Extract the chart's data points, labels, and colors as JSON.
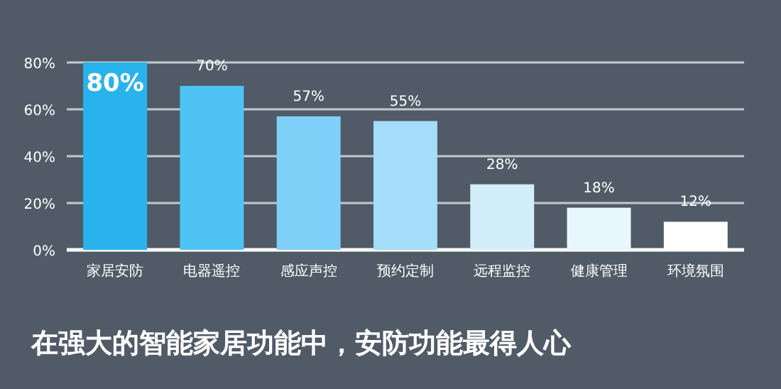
{
  "chart_data": {
    "type": "bar",
    "title": "在强大的智能家居功能中，安防功能最得人心",
    "categories": [
      "家居安防",
      "电器遥控",
      "感应声控",
      "预约定制",
      "远程监控",
      "健康管理",
      "环境氛围"
    ],
    "values": [
      80,
      70,
      57,
      55,
      28,
      18,
      12
    ],
    "colors": [
      "#29b3ec",
      "#4fc3f4",
      "#7fd0f8",
      "#a5dcf9",
      "#d3eefb",
      "#e8f6fd",
      "#ffffff"
    ],
    "value_labels": [
      "80%",
      "70%",
      "57%",
      "55%",
      "28%",
      "18%",
      "12%"
    ],
    "ylim": [
      0,
      80
    ],
    "yticks": [
      {
        "value": 0,
        "label": "0%"
      },
      {
        "value": 20,
        "label": "20%"
      },
      {
        "value": 40,
        "label": "40%"
      },
      {
        "value": 60,
        "label": "60%"
      },
      {
        "value": 80,
        "label": "80%"
      }
    ],
    "grid": "y"
  }
}
